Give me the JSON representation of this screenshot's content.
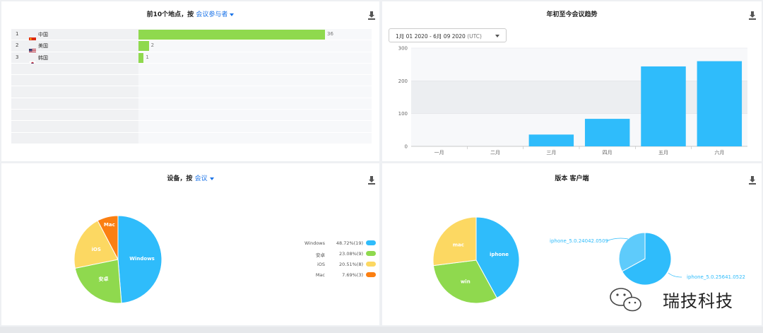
{
  "locations": {
    "title_prefix": "前10个地点，按",
    "title_link": "会议参与者",
    "max": 36,
    "rows": [
      {
        "rank": "1",
        "flag": "cn-flag",
        "name": "中国",
        "value": 36
      },
      {
        "rank": "2",
        "flag": "us-flag",
        "name": "美国",
        "value": 2
      },
      {
        "rank": "3",
        "flag": "kr-flag",
        "name": "韩国",
        "value": 1
      },
      {
        "rank": "",
        "flag": "",
        "name": "",
        "value": null
      },
      {
        "rank": "",
        "flag": "",
        "name": "",
        "value": null
      },
      {
        "rank": "",
        "flag": "",
        "name": "",
        "value": null
      },
      {
        "rank": "",
        "flag": "",
        "name": "",
        "value": null
      },
      {
        "rank": "",
        "flag": "",
        "name": "",
        "value": null
      },
      {
        "rank": "",
        "flag": "",
        "name": "",
        "value": null
      },
      {
        "rank": "",
        "flag": "",
        "name": "",
        "value": null
      }
    ]
  },
  "trend": {
    "title": "年初至今会议趋势",
    "date_range": "1月 01 2020 - 6月 09 2020",
    "timezone": "(UTC)"
  },
  "devices": {
    "title_prefix": "设备，按",
    "title_link": "会议"
  },
  "versions": {
    "title": "版本 客户端"
  },
  "watermark": {
    "text": "瑞技科技"
  },
  "colors": {
    "blue": "#2fbcfb",
    "green": "#8fd94e",
    "yellow": "#fcd862",
    "orange": "#fb7f12",
    "light_blue": "#5ecbfb"
  },
  "chart_data": [
    {
      "type": "bar",
      "categories": [
        "一月",
        "二月",
        "三月",
        "四月",
        "五月",
        "六月"
      ],
      "values": [
        0,
        0,
        36,
        84,
        244,
        260
      ],
      "ylim": [
        0,
        300
      ],
      "yticks": [
        0,
        100,
        200,
        300
      ],
      "grid": true
    },
    {
      "type": "pie",
      "labels": [
        "Windows",
        "安卓",
        "iOS",
        "Mac"
      ],
      "slice_labels": [
        "Windows",
        "安卓",
        "iOS",
        "Mac"
      ],
      "values": [
        19,
        9,
        8,
        3
      ],
      "legend_values": [
        "48.72%(19)",
        "23.08%(9)",
        "20.51%(8)",
        "7.69%(3)"
      ],
      "legend": "right"
    },
    {
      "type": "pie",
      "labels": [
        "iphone",
        "win",
        "mac"
      ],
      "slice_labels": [
        "iphone",
        "win",
        "mac"
      ],
      "values": [
        42,
        31,
        27
      ]
    },
    {
      "type": "pie",
      "labels": [
        "iphone_5.0.25641.0522",
        "iphone_5.0.24042.0509"
      ],
      "values": [
        67,
        33
      ]
    }
  ]
}
